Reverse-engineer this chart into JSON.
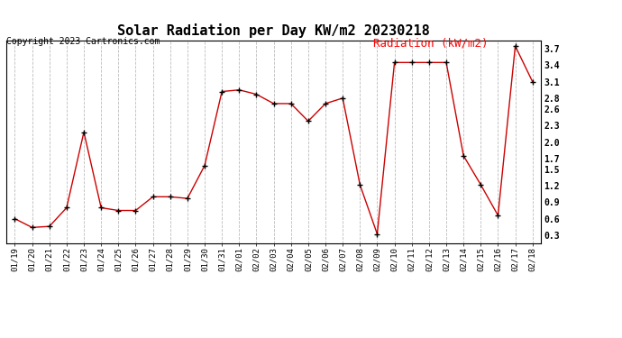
{
  "title": "Solar Radiation per Day KW/m2 20230218",
  "copyright": "Copyright 2023 Cartronics.com",
  "legend_label": "Radiation (kW/m2)",
  "dates": [
    "01/19",
    "01/20",
    "01/21",
    "01/22",
    "01/23",
    "01/24",
    "01/25",
    "01/26",
    "01/27",
    "01/28",
    "01/29",
    "01/30",
    "01/31",
    "02/01",
    "02/02",
    "02/03",
    "02/04",
    "02/05",
    "02/06",
    "02/07",
    "02/08",
    "02/09",
    "02/10",
    "02/11",
    "02/12",
    "02/13",
    "02/14",
    "02/15",
    "02/16",
    "02/17",
    "02/18"
  ],
  "values": [
    0.6,
    0.44,
    0.46,
    0.8,
    2.18,
    0.8,
    0.75,
    0.75,
    1.0,
    1.0,
    0.97,
    1.57,
    2.92,
    2.95,
    2.87,
    2.7,
    2.7,
    2.38,
    2.7,
    2.8,
    1.22,
    0.32,
    3.45,
    3.45,
    3.45,
    3.45,
    1.75,
    1.22,
    0.66,
    3.75,
    3.1
  ],
  "line_color": "#cc0000",
  "marker_color": "#000000",
  "grid_color": "#bbbbbb",
  "bg_color": "#ffffff",
  "title_fontsize": 11,
  "copyright_fontsize": 7,
  "legend_fontsize": 9,
  "ylim": [
    0.15,
    3.85
  ],
  "yticks": [
    0.3,
    0.6,
    0.9,
    1.2,
    1.5,
    1.7,
    2.0,
    2.3,
    2.6,
    2.8,
    3.1,
    3.4,
    3.7
  ]
}
